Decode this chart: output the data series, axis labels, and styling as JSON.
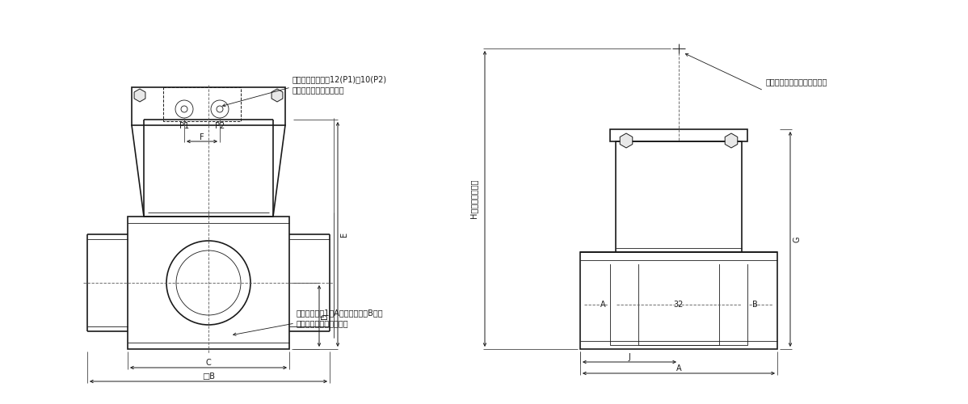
{
  "bg_color": "#ffffff",
  "lc": "#1a1a1a",
  "thin_lw": 0.6,
  "thick_lw": 1.2,
  "dim_lw": 0.6,
  "fs": 7.5,
  "fs_small": 7.0,
  "labels": {
    "pilot_port": "パイロットポート12(P1)，10(P2)",
    "pilot_pipe": "管接続口径は、下表参照",
    "main_port": "メインポート1（A）［背面２（B）］",
    "main_pipe": "管接続口径は、下表参照",
    "indicator": "インジケータ（オプション）",
    "H_label": "H（バルブ開時）"
  }
}
